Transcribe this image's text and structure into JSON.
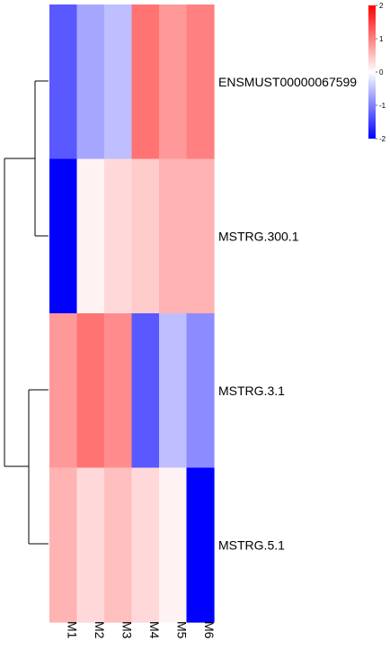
{
  "chart_data": {
    "type": "heatmap",
    "title": "",
    "columns": [
      "M1",
      "M2",
      "M3",
      "M4",
      "M5",
      "M6"
    ],
    "rows": [
      "ENSMUST00000067599",
      "MSTRG.300.1",
      "MSTRG.3.1",
      "MSTRG.5.1"
    ],
    "values": [
      [
        -1.3,
        -0.7,
        -0.5,
        1.1,
        0.8,
        1.0
      ],
      [
        -2.0,
        0.1,
        0.3,
        0.4,
        0.6,
        0.6
      ],
      [
        0.8,
        1.1,
        0.9,
        -1.3,
        -0.5,
        -0.9
      ],
      [
        0.6,
        0.3,
        0.5,
        0.3,
        0.1,
        -2.0
      ]
    ],
    "color_scale": {
      "min": -2,
      "max": 2,
      "low_color": "#0000ff",
      "mid_color": "#ffffff",
      "high_color": "#ff0000"
    },
    "legend": {
      "ticks": [
        "2",
        "1",
        "0",
        "-1",
        "-2"
      ],
      "placement": "top-right"
    },
    "row_dendrogram": true,
    "column_dendrogram": false
  }
}
